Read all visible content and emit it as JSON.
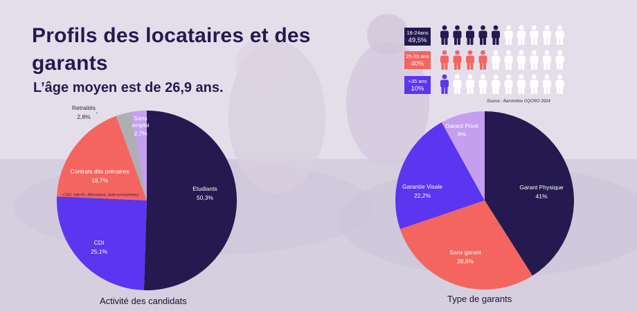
{
  "title": "Profils des locataires et des garants",
  "subtitle": "L’âge moyen est de 26,9 ans.",
  "infographic": {
    "rows": [
      {
        "age": "18-24ans",
        "pct": "49,5%",
        "filled": 5,
        "total": 10,
        "color": "#241a4f"
      },
      {
        "age": "25-35 ans",
        "pct": "40%",
        "filled": 4,
        "total": 10,
        "color": "#f46560"
      },
      {
        "age": "+35 ans",
        "pct": "10%",
        "filled": 1,
        "total": 10,
        "color": "#5b35f0"
      }
    ],
    "source": "Source : Baromètre OQORO 2024"
  },
  "chart_data": [
    {
      "type": "pie",
      "title": "Activité des candidats",
      "slices": [
        {
          "label": "Etudiants",
          "value": 50.3,
          "value_label": "50,3%",
          "color": "#241a4f"
        },
        {
          "label": "CDI",
          "value": 25.1,
          "value_label": "25,1%",
          "color": "#5b35f0"
        },
        {
          "label": "Contrats dits précaires",
          "value": 18.7,
          "value_label": "18,7%",
          "color": "#f46560",
          "note": "CDD, Interim, Alternance, Auto-entrepreneur"
        },
        {
          "label": "Retraités",
          "value": 2.8,
          "value_label": "2,8%",
          "color": "#b0aeb4"
        },
        {
          "label": "Sans emploi",
          "value": 2.7,
          "value_label": "2,7%",
          "color": "#c49ff0"
        }
      ]
    },
    {
      "type": "pie",
      "title": "Type de garants",
      "slices": [
        {
          "label": "Garant Physique",
          "value": 41,
          "value_label": "41%",
          "color": "#241a4f"
        },
        {
          "label": "Sans garant",
          "value": 28.8,
          "value_label": "28,8%",
          "color": "#f46560"
        },
        {
          "label": "Garantie Visale",
          "value": 22.2,
          "value_label": "22,2%",
          "color": "#5b35f0"
        },
        {
          "label": "Garant Privé",
          "value": 8,
          "value_label": "8%",
          "color": "#c49ff0"
        }
      ]
    }
  ]
}
